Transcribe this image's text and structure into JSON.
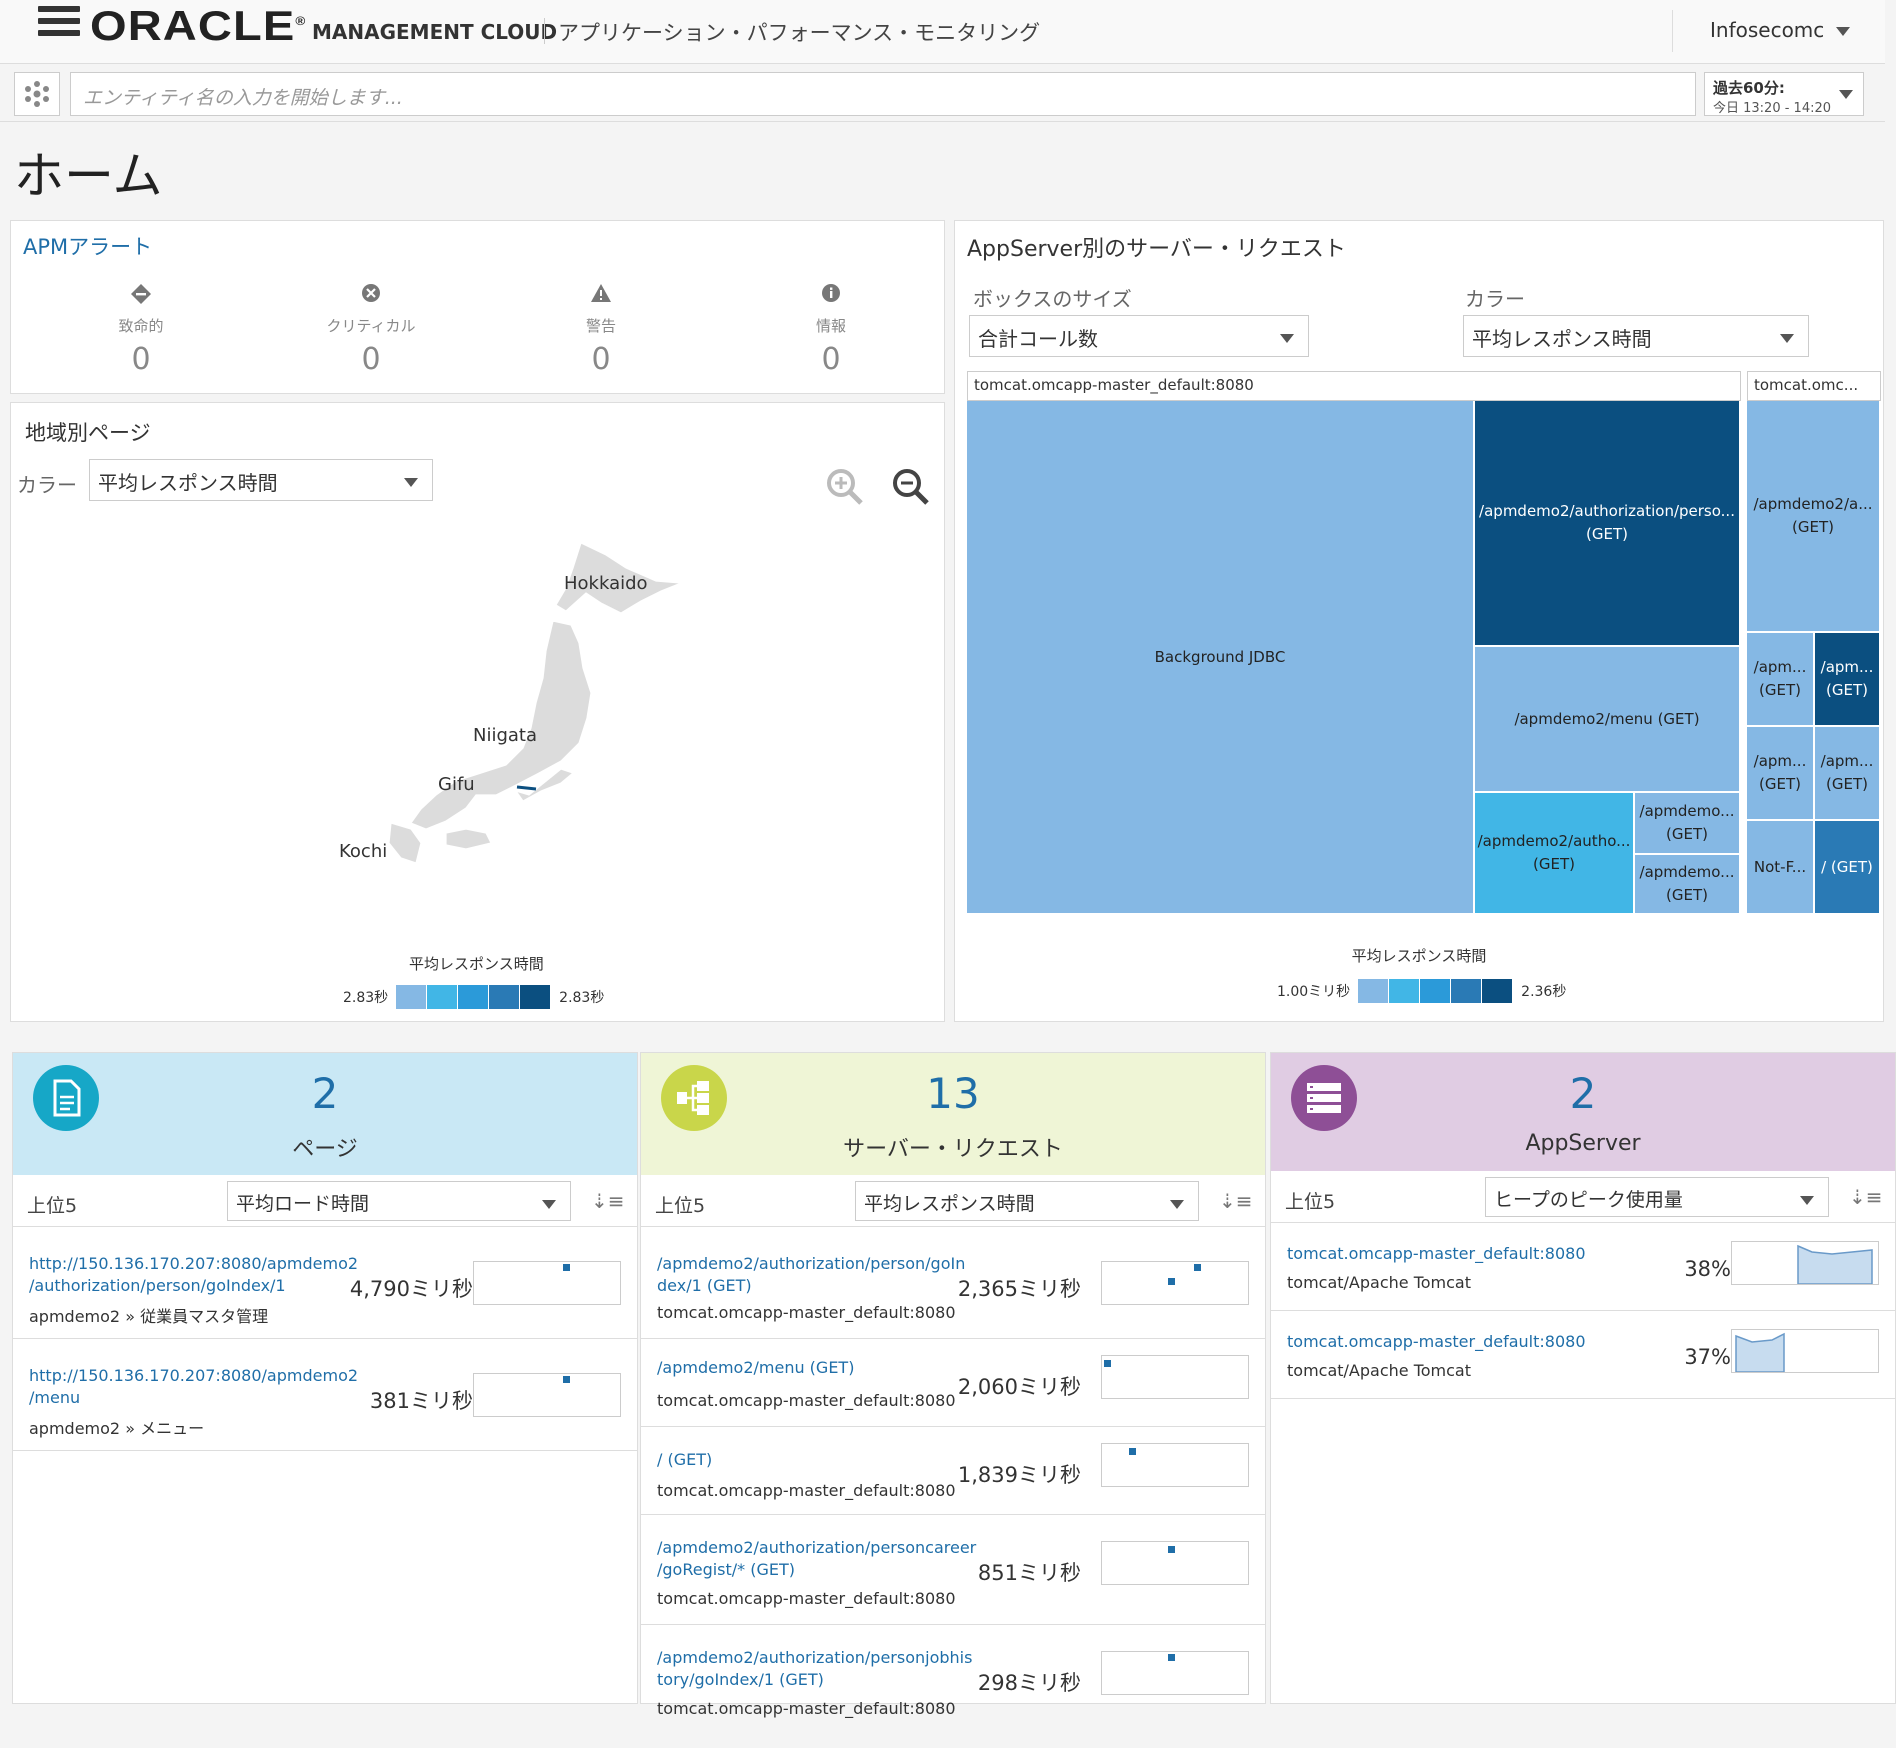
{
  "header": {
    "brand": "ORACLE",
    "registered": "®",
    "product": "MANAGEMENT CLOUD",
    "app": "アプリケーション・パフォーマンス・モニタリング",
    "user": "Infosecomc"
  },
  "search": {
    "placeholder": "エンティティ名の入力を開始します..."
  },
  "time": {
    "range": "過去60分:",
    "window": "今日 13:20 - 14:20"
  },
  "page": {
    "title": "ホーム"
  },
  "alerts": {
    "title": "APMアラート",
    "items": [
      {
        "label": "致命的",
        "value": "0",
        "icon": "diamond-icon"
      },
      {
        "label": "クリティカル",
        "value": "0",
        "icon": "x-circle-icon"
      },
      {
        "label": "警告",
        "value": "0",
        "icon": "warning-icon"
      },
      {
        "label": "情報",
        "value": "0",
        "icon": "info-icon"
      }
    ]
  },
  "geo": {
    "title": "地域別ページ",
    "color_label": "カラー",
    "color_value": "平均レスポンス時間",
    "regions": [
      "Hokkaido",
      "Niigata",
      "Gifu",
      "Kochi"
    ],
    "legend_title": "平均レスポンス時間",
    "legend_min": "2.83秒",
    "legend_max": "2.83秒"
  },
  "tree": {
    "title": "AppServer別のサーバー・リクエスト",
    "size_label": "ボックスのサイズ",
    "size_value": "合計コール数",
    "color_label": "カラー",
    "color_value": "平均レスポンス時間",
    "server1": "tomcat.omcapp-master_default:8080",
    "server2": "tomcat.omc...",
    "cells": [
      "Background JDBC",
      "/apmdemo2/authorization/perso... (GET)",
      "/apmdemo2/menu (GET)",
      "/apmdemo2/autho... (GET)",
      "/apmdemo... (GET)",
      "/apmdemo... (GET)",
      "/apmdemo2/a... (GET)",
      "/apm... (GET)",
      "/apm... (GET)",
      "/apm... (GET)",
      "/apm... (GET)",
      "Not-F...",
      "/ (GET)"
    ],
    "legend_title": "平均レスポンス時間",
    "legend_min": "1.00ミリ秒",
    "legend_max": "2.36秒"
  },
  "colors": {
    "l1": "#85b8e4",
    "l2": "#41b6e6",
    "l3": "#2b9ad9",
    "l4": "#2a7ab5",
    "l5": "#0b4f80",
    "pages_bg": "#c9e8f5",
    "req_bg": "#eff5d6",
    "app_bg": "#e0cce3",
    "teal": "#16a7c7",
    "olive": "#c9d64a",
    "purple": "#8e4f96"
  },
  "pages": {
    "count": "2",
    "label": "ページ",
    "top": "上位5",
    "metric": "平均ロード時間",
    "items": [
      {
        "link1": "http://150.136.170.207:8080/apmdemo2",
        "link2": "/authorization/person/goIndex/1",
        "sub": "apmdemo2 » 従業員マスタ管理",
        "value": "4,790ミリ秒"
      },
      {
        "link1": "http://150.136.170.207:8080/apmdemo2",
        "link2": "/menu",
        "sub": "apmdemo2 » メニュー",
        "value": "381ミリ秒"
      }
    ]
  },
  "requests": {
    "count": "13",
    "label": "サーバー・リクエスト",
    "top": "上位5",
    "metric": "平均レスポンス時間",
    "items": [
      {
        "link1": "/apmdemo2/authorization/person/goIn",
        "link2": "dex/1 (GET)",
        "sub": "tomcat.omcapp-master_default:8080",
        "value": "2,365ミリ秒"
      },
      {
        "link1": "/apmdemo2/menu (GET)",
        "link2": "",
        "sub": "tomcat.omcapp-master_default:8080",
        "value": "2,060ミリ秒"
      },
      {
        "link1": "/ (GET)",
        "link2": "",
        "sub": "tomcat.omcapp-master_default:8080",
        "value": "1,839ミリ秒"
      },
      {
        "link1": "/apmdemo2/authorization/personcareer",
        "link2": "/goRegist/* (GET)",
        "sub": "tomcat.omcapp-master_default:8080",
        "value": "851ミリ秒"
      },
      {
        "link1": "/apmdemo2/authorization/personjobhis",
        "link2": "tory/goIndex/1 (GET)",
        "sub": "tomcat.omcapp-master_default:8080",
        "value": "298ミリ秒"
      }
    ]
  },
  "appservers": {
    "count": "2",
    "label": "AppServer",
    "top": "上位5",
    "metric": "ヒープのピーク使用量",
    "items": [
      {
        "link1": "tomcat.omcapp-master_default:8080",
        "sub": "tomcat/Apache Tomcat",
        "value": "38%"
      },
      {
        "link1": "tomcat.omcapp-master_default:8080",
        "sub": "tomcat/Apache Tomcat",
        "value": "37%"
      }
    ]
  }
}
